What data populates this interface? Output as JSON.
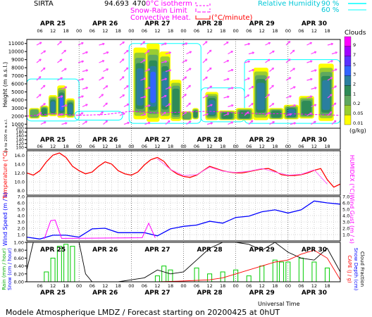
{
  "header": {
    "site": "SIRTA",
    "coord": "94.693",
    "altitude_fragment": "470",
    "legend_isotherm": "0°C isotherm",
    "legend_snow_rain": "Snow-Rain Limit",
    "legend_convective": "Convective Heat.",
    "legend_convective_unit": "(°C/minute)",
    "legend_rh": "Relative Humidity",
    "rh_90": "90 %",
    "rh_60": "60 %",
    "clouds_title": "Clouds",
    "clouds_unit": "(g/kg)"
  },
  "colors": {
    "isotherm": "#ff00ff",
    "convective": "#ff0000",
    "rh": "#00ffff",
    "wind_arrow": "#ff44ff",
    "temperature": "#ff0000",
    "humidex": "#ff66ff",
    "wind_speed": "#0000ff",
    "wind_gust": "#ff00ff",
    "rain": "#00cc00",
    "snow": "#000000",
    "cape": "#ff0000",
    "snow_depth": "#0000ff"
  },
  "footer": {
    "title": "Modele Atmospherique LMDZ / Forecast starting on 20200425 at 0hUT",
    "xlabel": "Universal Time"
  },
  "chart_data": [
    {
      "type": "heatmap",
      "panel": "clouds",
      "days": [
        "APR 25",
        "APR 26",
        "APR 27",
        "APR 28",
        "APR 29",
        "APR 30"
      ],
      "hour_ticks": [
        "06",
        "12",
        "18",
        "00",
        "06",
        "12",
        "18",
        "00",
        "06",
        "12",
        "18",
        "00",
        "06",
        "12",
        "18",
        "00",
        "06",
        "12",
        "18",
        "00",
        "06",
        "12",
        "18"
      ],
      "x_range_hours": [
        0,
        144
      ],
      "ylabel": "Height (m a.s.l.)",
      "ylabel_low": "Up to 200 m a.s.l.",
      "y_upper_ticks": [
        1000,
        2000,
        3000,
        4000,
        5000,
        6000,
        7000,
        8000,
        9000,
        10000,
        11000
      ],
      "y_lower_ticks": [
        100,
        120,
        140,
        160,
        180,
        200
      ],
      "colorbar_levels": [
        "9",
        "7",
        "5",
        "3",
        "2",
        "1",
        "0.2",
        "0.05",
        "0.01"
      ],
      "colorbar_colors": [
        "#ff00ff",
        "#a000ff",
        "#5a32ff",
        "#3264ff",
        "#2a7f9f",
        "#2e8b57",
        "#5fa85f",
        "#9acd32",
        "#ffff00"
      ],
      "cloud_cells": [
        {
          "t0": 1,
          "t1": 6,
          "h0": 1700,
          "h1": 3000,
          "level": 2
        },
        {
          "t0": 6,
          "t1": 10,
          "h0": 1900,
          "h1": 3300,
          "level": 3
        },
        {
          "t0": 10,
          "t1": 14,
          "h0": 2000,
          "h1": 4600,
          "level": 4
        },
        {
          "t0": 14,
          "t1": 18,
          "h0": 1800,
          "h1": 5800,
          "level": 5
        },
        {
          "t0": 18,
          "t1": 22,
          "h0": 1800,
          "h1": 4200,
          "level": 4
        },
        {
          "t0": 49,
          "t1": 55,
          "h0": 1600,
          "h1": 10500,
          "level": 4
        },
        {
          "t0": 55,
          "t1": 61,
          "h0": 1300,
          "h1": 11000,
          "level": 5
        },
        {
          "t0": 61,
          "t1": 66,
          "h0": 1600,
          "h1": 10000,
          "level": 4
        },
        {
          "t0": 66,
          "t1": 71,
          "h0": 1400,
          "h1": 6500,
          "level": 3
        },
        {
          "t0": 71,
          "t1": 76,
          "h0": 1500,
          "h1": 2600,
          "level": 2
        },
        {
          "t0": 76,
          "t1": 79,
          "h0": 1600,
          "h1": 3000,
          "level": 3
        },
        {
          "t0": 82,
          "t1": 88,
          "h0": 1500,
          "h1": 5000,
          "level": 4
        },
        {
          "t0": 88,
          "t1": 96,
          "h0": 1500,
          "h1": 2700,
          "level": 3
        },
        {
          "t0": 96,
          "t1": 104,
          "h0": 1500,
          "h1": 3000,
          "level": 3
        },
        {
          "t0": 104,
          "t1": 111,
          "h0": 1500,
          "h1": 8000,
          "level": 4
        },
        {
          "t0": 111,
          "t1": 118,
          "h0": 1600,
          "h1": 3000,
          "level": 3
        },
        {
          "t0": 118,
          "t1": 125,
          "h0": 1600,
          "h1": 3400,
          "level": 4
        },
        {
          "t0": 125,
          "t1": 132,
          "h0": 1700,
          "h1": 4500,
          "level": 3
        },
        {
          "t0": 134,
          "t1": 141,
          "h0": 1400,
          "h1": 8500,
          "level": 4
        }
      ],
      "rh_contour": [
        {
          "t0": 0,
          "t1": 24,
          "h0": 1400,
          "h1": 6600
        },
        {
          "t0": 22,
          "t1": 44,
          "h0": 1500,
          "h1": 2600
        },
        {
          "t0": 47,
          "t1": 80,
          "h0": 1100,
          "h1": 11000
        },
        {
          "t0": 80,
          "t1": 100,
          "h0": 1300,
          "h1": 5500
        },
        {
          "t0": 100,
          "t1": 144,
          "h0": 1100,
          "h1": 9000
        }
      ],
      "isotherm_line": {
        "t": [
          0,
          12,
          24,
          36,
          48,
          60,
          72,
          84,
          96,
          108,
          120,
          132,
          144
        ],
        "h": [
          2000,
          2300,
          2100,
          2200,
          2600,
          2400,
          2500,
          2600,
          2400,
          2300,
          2300,
          2200,
          2100
        ]
      },
      "wind_arrow_count": 150
    },
    {
      "type": "line",
      "panel": "temperature",
      "ylabel": "Temperature (°C)",
      "ylabel_right": "HUMIDEX (°C)",
      "y_ticks": [
        8.0,
        10.0,
        12.0,
        14.0,
        16.0
      ],
      "ylim": [
        7,
        17
      ],
      "series": [
        {
          "name": "Temperature",
          "x": [
            0,
            3,
            6,
            9,
            12,
            15,
            18,
            21,
            24,
            27,
            30,
            33,
            36,
            39,
            42,
            45,
            48,
            51,
            54,
            57,
            60,
            63,
            66,
            69,
            72,
            75,
            78,
            81,
            84,
            87,
            90,
            93,
            96,
            99,
            102,
            105,
            108,
            111,
            114,
            117,
            120,
            123,
            126,
            129,
            132,
            135,
            138,
            141,
            144
          ],
          "y": [
            12.0,
            11.5,
            12.5,
            14.5,
            16.0,
            16.5,
            15.5,
            13.5,
            12.5,
            11.8,
            12.2,
            13.5,
            14.5,
            14.0,
            12.5,
            11.8,
            11.5,
            12.2,
            13.8,
            15.0,
            15.5,
            14.6,
            12.8,
            11.8,
            11.2,
            11.0,
            11.5,
            12.5,
            13.5,
            13.0,
            12.5,
            12.2,
            12.0,
            12.0,
            12.3,
            12.6,
            12.9,
            13.0,
            12.4,
            11.6,
            11.4,
            11.4,
            11.6,
            12.0,
            12.6,
            13.0,
            10.5,
            8.8,
            9.5
          ]
        },
        {
          "name": "HUMIDEX",
          "x": [
            60,
            66,
            72,
            78,
            84,
            90,
            96,
            102,
            108,
            114,
            120,
            126,
            132,
            138
          ],
          "y": [
            15.2,
            12.8,
            11.4,
            11.6,
            13.3,
            12.4,
            12.1,
            12.4,
            13.0,
            12.2,
            11.5,
            11.7,
            12.7,
            9.5
          ]
        }
      ]
    },
    {
      "type": "line",
      "panel": "wind",
      "ylabel": "Wind Speed (m / s)",
      "ylabel_right": "Wind Gust (m / s)",
      "y_ticks": [
        1.0,
        2.0,
        3.0,
        4.0,
        5.0,
        6.0,
        7.0
      ],
      "ylim": [
        0,
        7
      ],
      "series": [
        {
          "name": "Wind Speed",
          "x": [
            0,
            6,
            12,
            18,
            24,
            30,
            36,
            42,
            48,
            54,
            60,
            66,
            72,
            78,
            84,
            90,
            96,
            102,
            108,
            114,
            120,
            126,
            132,
            138,
            144
          ],
          "y": [
            0.6,
            0.3,
            0.9,
            0.9,
            0.6,
            1.9,
            2.0,
            1.3,
            1.3,
            1.3,
            0.8,
            1.9,
            2.3,
            2.5,
            3.1,
            2.8,
            3.7,
            3.9,
            4.6,
            4.9,
            4.4,
            4.9,
            6.3,
            6.0,
            5.8
          ]
        },
        {
          "name": "Wind Gust",
          "x": [
            8,
            11,
            13,
            16,
            53,
            56,
            59
          ],
          "y": [
            0.3,
            3.2,
            3.3,
            0.4,
            0.5,
            2.8,
            0.5
          ]
        }
      ]
    },
    {
      "type": "bar",
      "panel": "precipitation",
      "ylabel": "Rain (mm / hour)\nSnow (cm / hour)",
      "ylabel_right": "CAPE (J / g)\nSnow Depth (cm)\nCloud Fraction",
      "y_ticks": [
        0.0,
        0.2,
        0.4,
        0.6,
        0.8,
        1.0
      ],
      "ylim": [
        0,
        1.0
      ],
      "series": [
        {
          "name": "Rain",
          "x": [
            9,
            12,
            15,
            18,
            21,
            60,
            63,
            66,
            78,
            84,
            90,
            96,
            102,
            108,
            114,
            117,
            120,
            126,
            132,
            138
          ],
          "y": [
            0.25,
            0.6,
            0.9,
            0.95,
            0.9,
            0.15,
            0.4,
            0.3,
            0.35,
            0.2,
            0.25,
            0.3,
            0.15,
            0.4,
            0.55,
            0.5,
            0.5,
            0.6,
            0.5,
            0.35
          ]
        },
        {
          "name": "Cloud Fraction",
          "x": [
            0,
            3,
            6,
            12,
            18,
            24,
            27,
            30,
            36,
            42,
            48,
            54,
            60,
            66,
            72,
            78,
            84,
            90,
            96,
            102,
            108,
            114,
            120,
            126,
            132,
            138,
            144
          ],
          "y": [
            0.3,
            1.0,
            1.0,
            1.0,
            1.0,
            1.0,
            0.2,
            0.0,
            0.0,
            0.0,
            0.05,
            0.1,
            0.3,
            0.2,
            0.25,
            0.55,
            0.85,
            1.0,
            1.0,
            0.95,
            0.8,
            1.0,
            0.75,
            0.6,
            0.55,
            0.85,
            0.25
          ]
        },
        {
          "name": "CAPE",
          "x": [
            0,
            60,
            72,
            84,
            90,
            96,
            102,
            108,
            114,
            120,
            126,
            132,
            138,
            144
          ],
          "y": [
            0.0,
            0.0,
            0.02,
            0.05,
            0.1,
            0.2,
            0.3,
            0.4,
            0.5,
            0.55,
            0.7,
            0.8,
            0.6,
            0.05
          ]
        }
      ]
    }
  ]
}
